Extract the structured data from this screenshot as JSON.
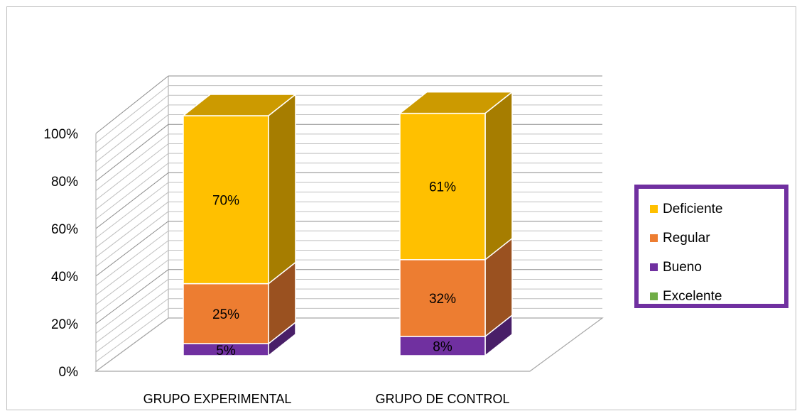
{
  "chart_data": {
    "type": "bar",
    "stacked": true,
    "three_d": true,
    "categories": [
      "GRUPO EXPERIMENTAL",
      "GRUPO DE CONTROL"
    ],
    "series": [
      {
        "name": "Excelente",
        "values": [
          0,
          0
        ],
        "color": "#70ad47",
        "labels": [
          "",
          ""
        ]
      },
      {
        "name": "Bueno",
        "values": [
          5,
          8
        ],
        "color": "#7030a0",
        "labels": [
          "5%",
          "8%"
        ]
      },
      {
        "name": "Regular",
        "values": [
          25,
          32
        ],
        "color": "#ed7d31",
        "labels": [
          "25%",
          "32%"
        ]
      },
      {
        "name": "Deficiente",
        "values": [
          70,
          61
        ],
        "color": "#ffc000",
        "labels": [
          "70%",
          "61%"
        ]
      }
    ],
    "y_ticks": [
      "0%",
      "20%",
      "40%",
      "60%",
      "80%",
      "100%"
    ],
    "ylim": [
      0,
      100
    ],
    "grid": true,
    "legend_position": "right",
    "legend_order": [
      "Deficiente",
      "Regular",
      "Bueno",
      "Excelente"
    ]
  }
}
